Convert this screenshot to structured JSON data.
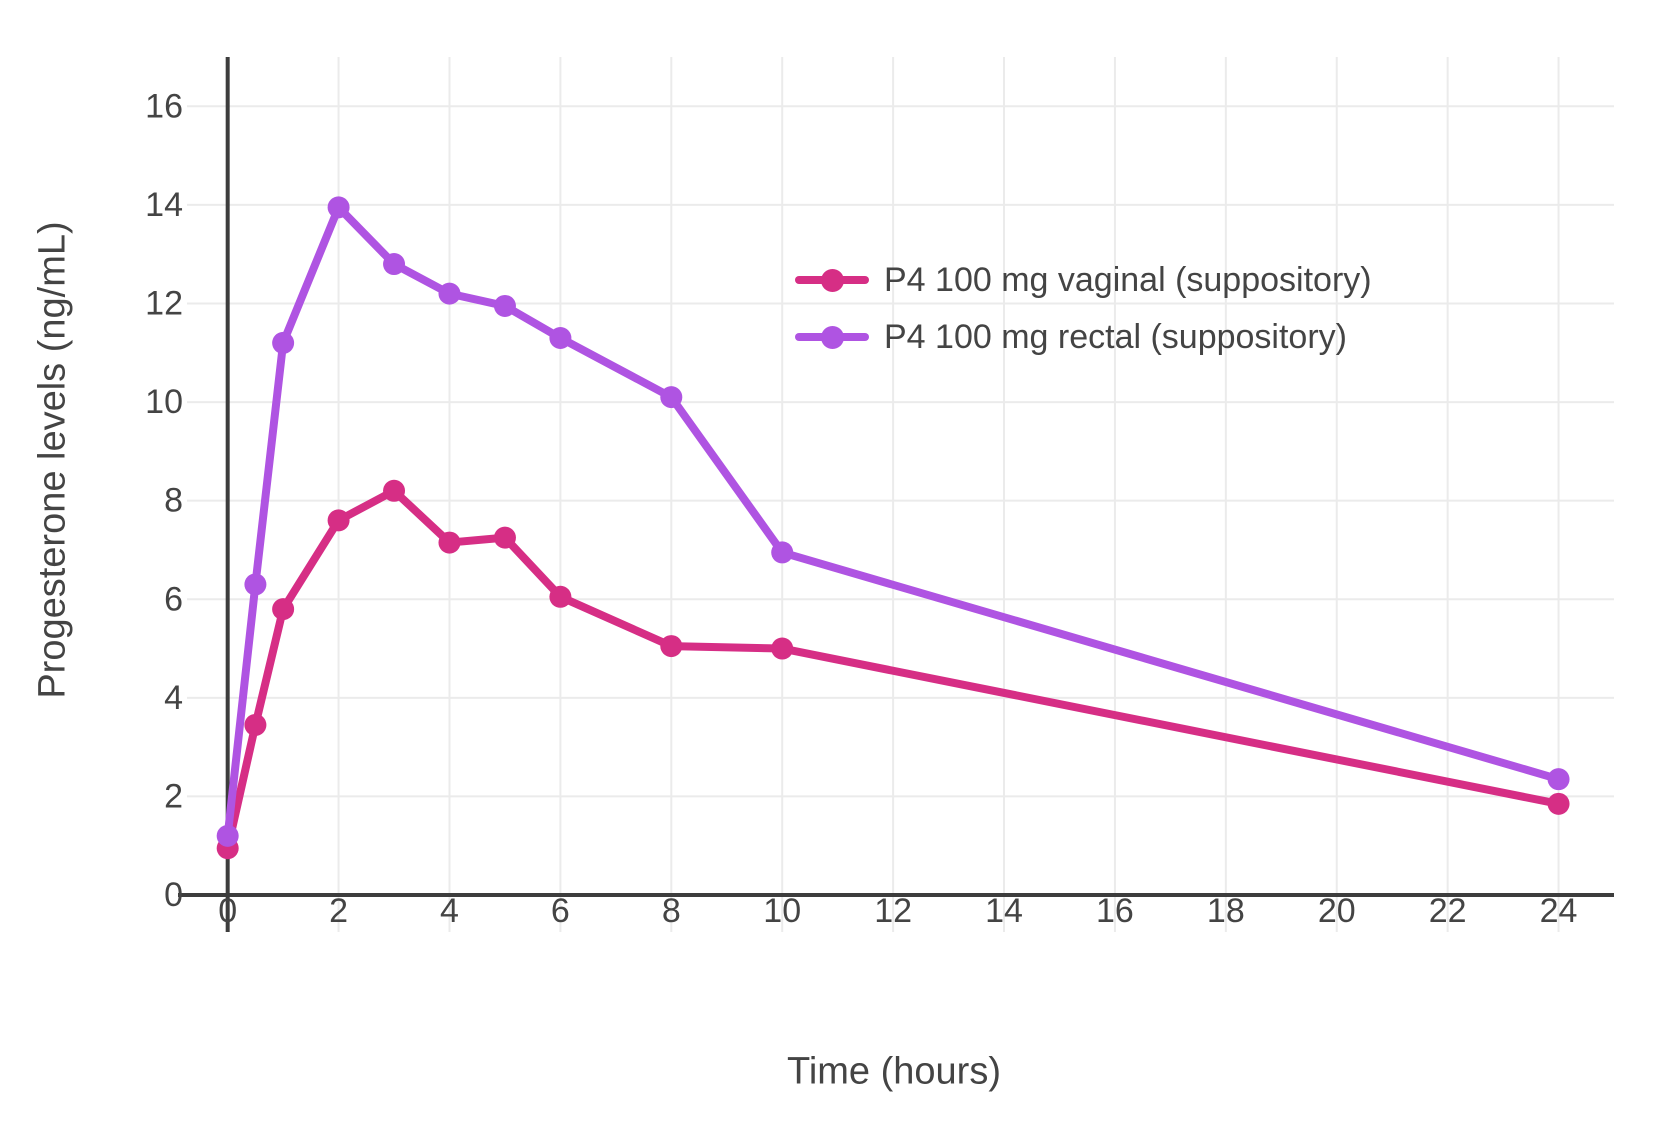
{
  "chart_data": {
    "type": "line",
    "title": "",
    "xlabel": "Time (hours)",
    "ylabel": "Progesterone levels (ng/mL)",
    "x": [
      0,
      0.5,
      1,
      2,
      3,
      4,
      5,
      6,
      8,
      10,
      24
    ],
    "series": [
      {
        "name": "P4 100 mg vaginal (suppository)",
        "color": "#D62E85",
        "values": [
          0.95,
          3.45,
          5.8,
          7.6,
          8.2,
          7.15,
          7.25,
          6.05,
          5.05,
          5.0,
          1.85
        ]
      },
      {
        "name": "P4 100 mg rectal (suppository)",
        "color": "#AF54E2",
        "values": [
          1.2,
          6.3,
          11.2,
          13.95,
          12.8,
          12.2,
          11.95,
          11.3,
          10.1,
          6.95,
          2.35
        ]
      }
    ],
    "xticks": [
      0,
      2,
      4,
      6,
      8,
      10,
      12,
      14,
      16,
      18,
      20,
      22,
      24
    ],
    "yticks": [
      0,
      2,
      4,
      6,
      8,
      10,
      12,
      14,
      16
    ],
    "xlim": [
      -0.95,
      25
    ],
    "ylim": [
      -0.75,
      17
    ],
    "grid": true,
    "legend_position": "inside upper right",
    "colors": {
      "axis_line": "#3d3d3d",
      "grid_line": "#ebebeb",
      "text": "#444444",
      "background": "#ffffff"
    }
  }
}
